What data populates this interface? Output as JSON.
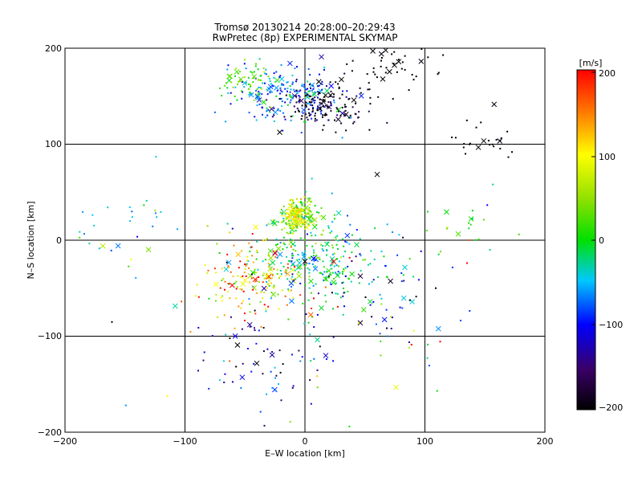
{
  "chart_data": {
    "type": "scatter",
    "title": "Tromsø 20130214 20:28:00–20:29:43",
    "subtitle": "RwPretec (8p) EXPERIMENTAL SKYMAP",
    "xlabel": "E–W location [km]",
    "ylabel": "N–S location [km]",
    "xlim": [
      -200,
      200
    ],
    "ylim": [
      -200,
      200
    ],
    "x_ticks": [
      "−200",
      "−100",
      "0",
      "100",
      "200"
    ],
    "y_ticks": [
      "200",
      "100",
      "0",
      "−100",
      "−200"
    ],
    "grid": true,
    "colorbar": {
      "label": "[m/s]",
      "range": [
        -200,
        200
      ],
      "ticks": [
        "200",
        "100",
        "0",
        "−100",
        "−200"
      ]
    },
    "clusters": [
      {
        "cx": -15,
        "cy": 150,
        "sx": 22,
        "sy": 15,
        "n": 220,
        "vel": -70,
        "vsd": 40
      },
      {
        "cx": 20,
        "cy": 140,
        "sx": 20,
        "sy": 12,
        "n": 140,
        "vel": -190,
        "vsd": 20
      },
      {
        "cx": -50,
        "cy": 165,
        "sx": 12,
        "sy": 10,
        "n": 60,
        "vel": 20,
        "vsd": 30
      },
      {
        "cx": 70,
        "cy": 185,
        "sx": 25,
        "sy": 12,
        "n": 45,
        "vel": -200,
        "vsd": 5
      },
      {
        "cx": 150,
        "cy": 105,
        "sx": 15,
        "sy": 12,
        "n": 25,
        "vel": -200,
        "vsd": 5
      },
      {
        "cx": -5,
        "cy": 25,
        "sx": 8,
        "sy": 10,
        "n": 180,
        "vel": 40,
        "vsd": 40
      },
      {
        "cx": -8,
        "cy": 25,
        "sx": 4,
        "sy": 5,
        "n": 70,
        "vel": 100,
        "vsd": 20
      },
      {
        "cx": 10,
        "cy": -25,
        "sx": 25,
        "sy": 22,
        "n": 260,
        "vel": -20,
        "vsd": 40
      },
      {
        "cx": -40,
        "cy": -40,
        "sx": 25,
        "sy": 20,
        "n": 180,
        "vel": 120,
        "vsd": 70
      },
      {
        "cx": -30,
        "cy": -120,
        "sx": 30,
        "sy": 30,
        "n": 70,
        "vel": -120,
        "vsd": 50
      },
      {
        "cx": 60,
        "cy": -50,
        "sx": 35,
        "sy": 40,
        "n": 60,
        "vel": -90,
        "vsd": 80
      },
      {
        "cx": 140,
        "cy": 10,
        "sx": 20,
        "sy": 15,
        "n": 20,
        "vel": 0,
        "vsd": 30
      },
      {
        "cx": -150,
        "cy": 20,
        "sx": 20,
        "sy": 25,
        "n": 25,
        "vel": -30,
        "vsd": 50
      },
      {
        "cx": 0,
        "cy": -100,
        "sx": 110,
        "sy": 90,
        "n": 70,
        "vel": 0,
        "vsd": 110
      }
    ]
  }
}
